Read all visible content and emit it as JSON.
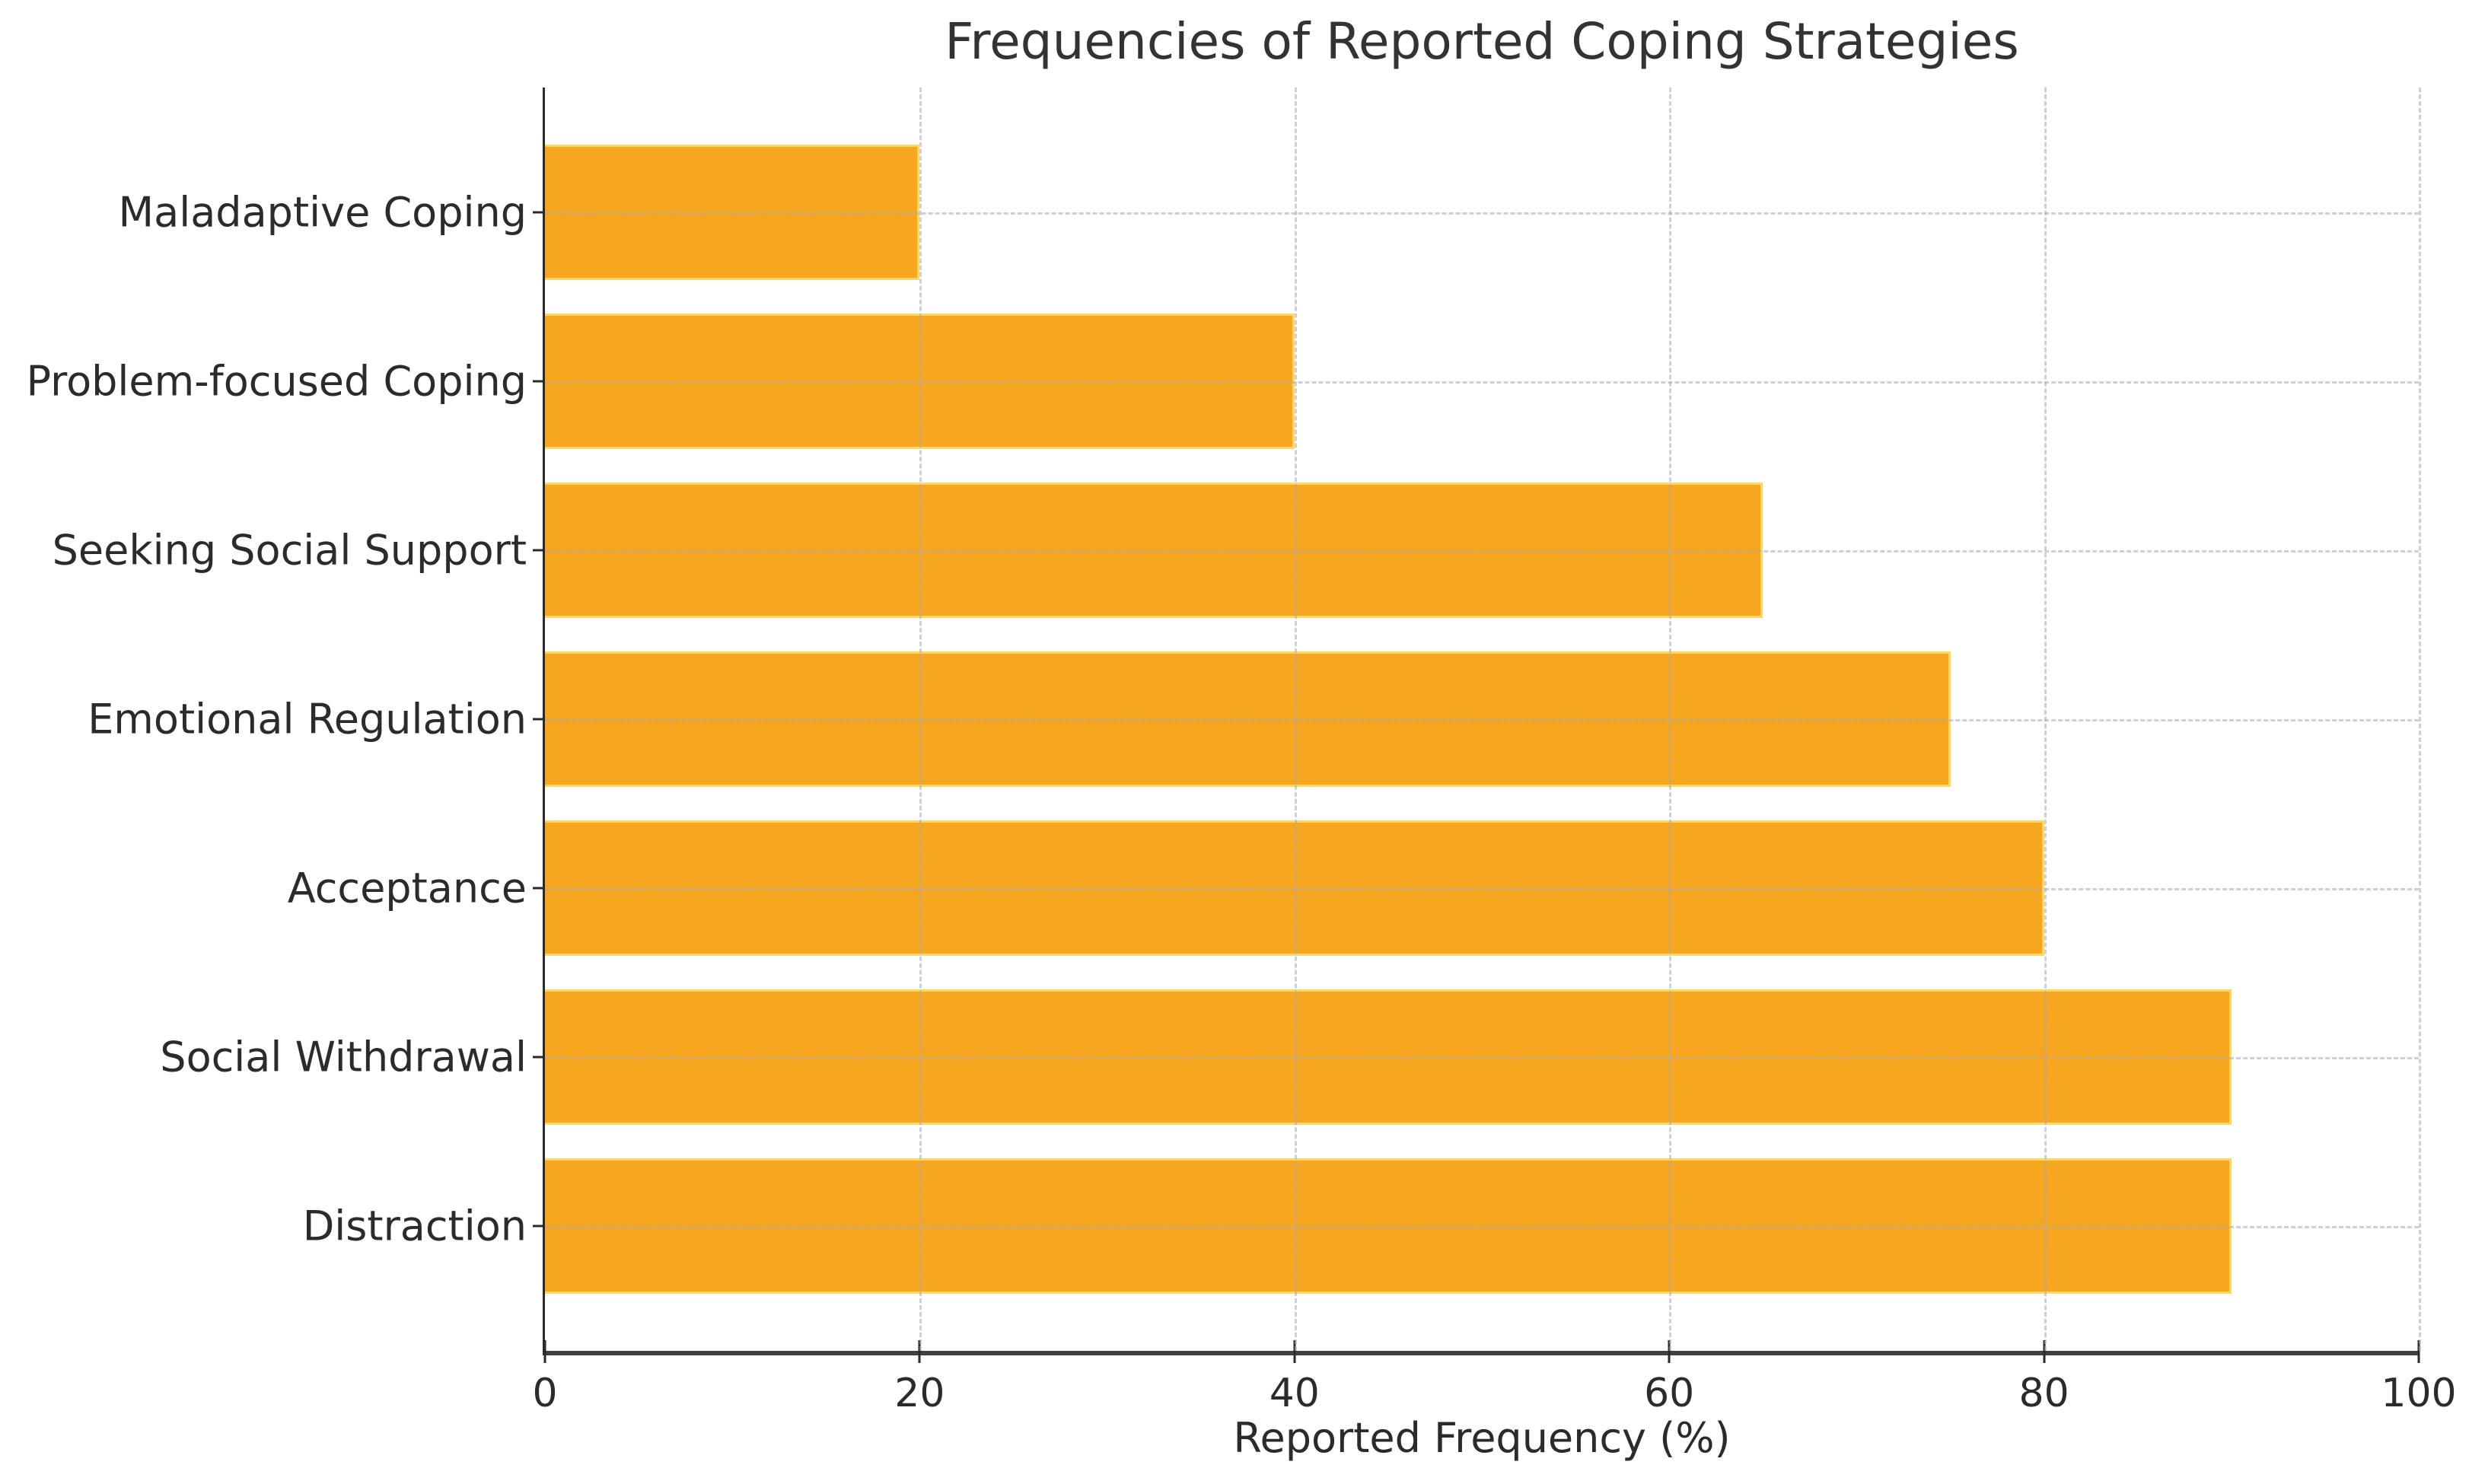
{
  "chart_data": {
    "type": "bar",
    "orientation": "horizontal",
    "title": "Frequencies of Reported Coping Strategies",
    "xlabel": "Reported Frequency (%)",
    "ylabel": "",
    "category_order": "top-to-bottom",
    "categories": [
      "Maladaptive Coping",
      "Problem-focused Coping",
      "Seeking Social Support",
      "Emotional Regulation",
      "Acceptance",
      "Social Withdrawal",
      "Distraction"
    ],
    "values": [
      20,
      40,
      65,
      75,
      80,
      90,
      90
    ],
    "xlim": [
      0,
      100
    ],
    "xticks": [
      0,
      20,
      40,
      60,
      80,
      100
    ],
    "grid": true,
    "grid_style": "dashed",
    "legend": "none",
    "bar_height_fraction": 0.8,
    "colors": {
      "bar_fill": "#F6A71F",
      "bar_edge": "#FFD763",
      "grid_line": "#A9AAB8",
      "left_spine": "#2A2A2A",
      "bottom_spine": "#3D4045",
      "text": "#2B2B2B",
      "title_text": "#333333",
      "background": "#FFFFFF"
    }
  }
}
